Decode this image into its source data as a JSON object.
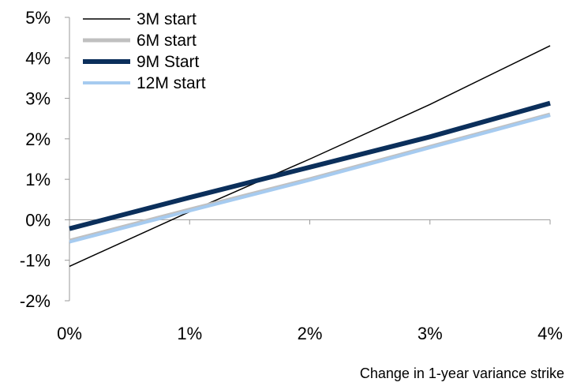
{
  "chart_data": {
    "type": "line",
    "title": "",
    "xlabel": "Change in 1-year variance strike",
    "ylabel": "",
    "x": [
      0,
      1,
      2,
      3,
      4
    ],
    "x_tick_labels": [
      "0%",
      "1%",
      "2%",
      "3%",
      "4%"
    ],
    "xlim": [
      0,
      4
    ],
    "y_tick_values": [
      -2,
      -1,
      0,
      1,
      2,
      3,
      4,
      5
    ],
    "y_tick_labels": [
      "-2%",
      "-1%",
      "0%",
      "1%",
      "2%",
      "3%",
      "4%",
      "5%"
    ],
    "ylim": [
      -2,
      5
    ],
    "grid": false,
    "legend_position": "top-left",
    "series": [
      {
        "name": "3M start",
        "values": [
          -1.15,
          0.2,
          1.5,
          2.85,
          4.3
        ],
        "color": "#000000",
        "width": 1.5
      },
      {
        "name": "6M start",
        "values": [
          -0.52,
          0.25,
          1.0,
          1.8,
          2.6
        ],
        "color": "#c0c0c0",
        "width": 5
      },
      {
        "name": "9M Start",
        "values": [
          -0.22,
          0.55,
          1.3,
          2.05,
          2.88
        ],
        "color": "#0b2f5b",
        "width": 6
      },
      {
        "name": "12M start",
        "values": [
          -0.55,
          0.22,
          0.98,
          1.78,
          2.58
        ],
        "color": "#a6cbf0",
        "width": 4
      }
    ]
  }
}
